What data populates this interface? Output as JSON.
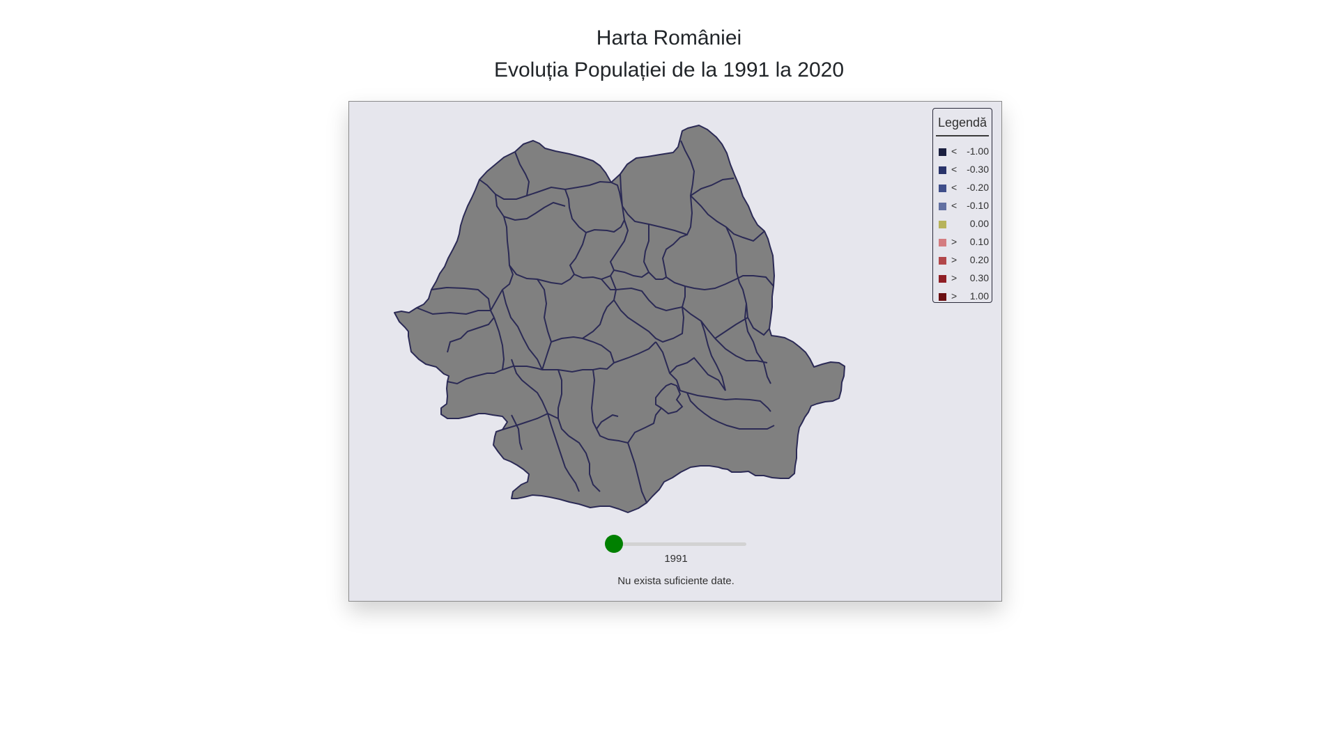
{
  "page": {
    "title_line1": "Harta României",
    "title_line2": "Evoluția Populației de la 1991 la 2020"
  },
  "map": {
    "region": "Romania counties",
    "no_data_fill": "#808080",
    "border_color": "#2b2a55",
    "background": "#e6e6ed"
  },
  "legend": {
    "title": "Legendă",
    "items": [
      {
        "op": "<",
        "value": "-1.00",
        "color": "#1b2040"
      },
      {
        "op": "<",
        "value": "-0.30",
        "color": "#29336a"
      },
      {
        "op": "<",
        "value": "-0.20",
        "color": "#3f4e8a"
      },
      {
        "op": "<",
        "value": "-0.10",
        "color": "#6270a2"
      },
      {
        "op": "",
        "value": "0.00",
        "color": "#b7b35a"
      },
      {
        "op": ">",
        "value": "0.10",
        "color": "#d47c80"
      },
      {
        "op": ">",
        "value": "0.20",
        "color": "#b2474a"
      },
      {
        "op": ">",
        "value": "0.30",
        "color": "#8f1f25"
      },
      {
        "op": ">",
        "value": "1.00",
        "color": "#6a0f12"
      }
    ]
  },
  "slider": {
    "year": "1991",
    "min": 1991,
    "max": 2020,
    "value": 1991,
    "thumb_color": "#008000"
  },
  "status": "Nu exista suficiente date."
}
